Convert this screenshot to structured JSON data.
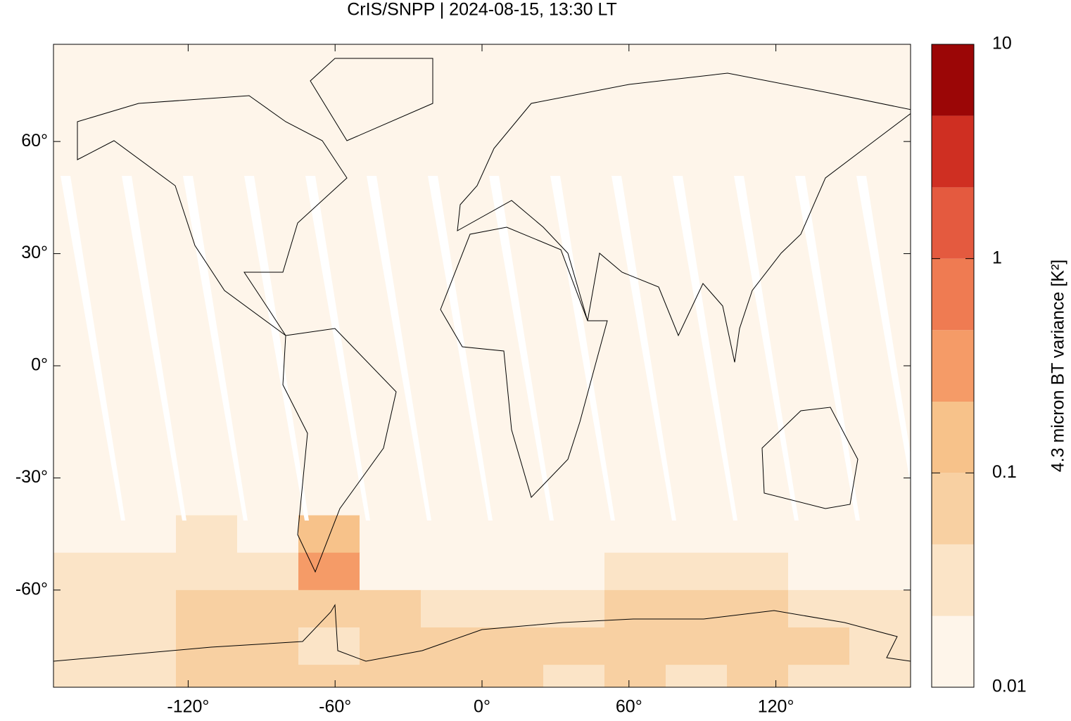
{
  "chart_data": {
    "type": "heatmap",
    "title": "CrIS/SNPP | 2024-08-15, 13:30 LT",
    "xlim": [
      -175,
      175
    ],
    "ylim": [
      -86,
      86
    ],
    "xticks": [
      {
        "value": -120,
        "label": "-120°"
      },
      {
        "value": -60,
        "label": "-60°"
      },
      {
        "value": 0,
        "label": "0°"
      },
      {
        "value": 60,
        "label": "60°"
      },
      {
        "value": 120,
        "label": "120°"
      }
    ],
    "yticks": [
      {
        "value": -60,
        "label": "-60°"
      },
      {
        "value": -30,
        "label": "-30°"
      },
      {
        "value": 0,
        "label": "0°"
      },
      {
        "value": 30,
        "label": "30°"
      },
      {
        "value": 60,
        "label": "60°"
      }
    ],
    "lon_edges": [
      -175,
      -150,
      -125,
      -100,
      -75,
      -50,
      -25,
      0,
      25,
      50,
      75,
      100,
      125,
      150,
      175
    ],
    "lat_edges": [
      86,
      -40,
      -50,
      -60,
      -70,
      -80,
      -86
    ],
    "values": [
      [
        0.013,
        0.013,
        0.013,
        0.013,
        0.013,
        0.013,
        0.013,
        0.013,
        0.013,
        0.013,
        0.013,
        0.013,
        0.013,
        0.013
      ],
      [
        0.018,
        0.02,
        0.035,
        0.02,
        0.15,
        0.015,
        0.013,
        0.013,
        0.014,
        0.015,
        0.015,
        0.015,
        0.015,
        0.02
      ],
      [
        0.03,
        0.035,
        0.04,
        0.04,
        0.3,
        0.02,
        0.018,
        0.016,
        0.018,
        0.025,
        0.03,
        0.025,
        0.02,
        0.02
      ],
      [
        0.04,
        0.03,
        0.05,
        0.06,
        0.05,
        0.05,
        0.04,
        0.03,
        0.035,
        0.05,
        0.05,
        0.06,
        0.04,
        0.03
      ],
      [
        0.03,
        0.03,
        0.06,
        0.08,
        0.04,
        0.05,
        0.07,
        0.08,
        0.06,
        0.05,
        0.05,
        0.09,
        0.06,
        0.04
      ],
      [
        0.03,
        0.03,
        0.05,
        0.06,
        0.06,
        0.05,
        0.06,
        0.05,
        0.04,
        0.05,
        0.04,
        0.05,
        0.04,
        0.03
      ]
    ],
    "colorbar": {
      "label": "4.3 micron BT variance [K²]",
      "log": true,
      "lim": [
        0.01,
        10
      ],
      "ticks": [
        0.01,
        0.1,
        1,
        10
      ],
      "levels": [
        0.01,
        0.0215,
        0.0464,
        0.1,
        0.215,
        0.464,
        1,
        2.15,
        4.64,
        10
      ],
      "colors": [
        "#fef5ea",
        "#fbe4c7",
        "#f8d0a2",
        "#f7c28a",
        "#f59b67",
        "#ef7b52",
        "#e45a3f",
        "#cf2f22",
        "#9b0606"
      ]
    }
  }
}
